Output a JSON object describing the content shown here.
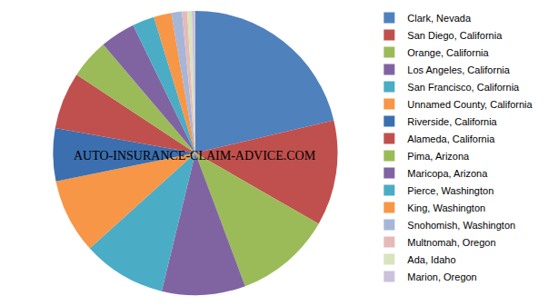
{
  "chart_data": {
    "type": "pie",
    "categories": [
      "Clark, Nevada",
      "San Diego, California",
      "Orange, California",
      "Los Angeles, California",
      "San Francisco, California",
      "Unnamed County, California",
      "Riverside, California",
      "Alameda, California",
      "Pima, Arizona",
      "Maricopa, Arizona",
      "Pierce, Washington",
      "King, Washington",
      "Snohomish, Washington",
      "Multnomah, Oregon",
      "Ada, Idaho",
      "Marion, Oregon"
    ],
    "values": [
      21.3,
      12,
      11,
      9.5,
      9.5,
      8.5,
      6,
      6.5,
      4.5,
      4,
      2.5,
      2,
      1.2,
      0.6,
      0.5,
      0.4
    ],
    "colors": [
      "#4f81bd",
      "#c0504d",
      "#9bbb59",
      "#8064a2",
      "#4bacc6",
      "#f79646",
      "#3b6fb0",
      "#c0504d",
      "#9bbb59",
      "#8064a2",
      "#4bacc6",
      "#f79646",
      "#a5b6d9",
      "#e6b9b8",
      "#d7e4bd",
      "#ccc1da"
    ],
    "annotations": [
      "AUTO-INSURANCE-CLAIM-ADVICE.COM"
    ],
    "legend": "right",
    "data_labels": false
  }
}
